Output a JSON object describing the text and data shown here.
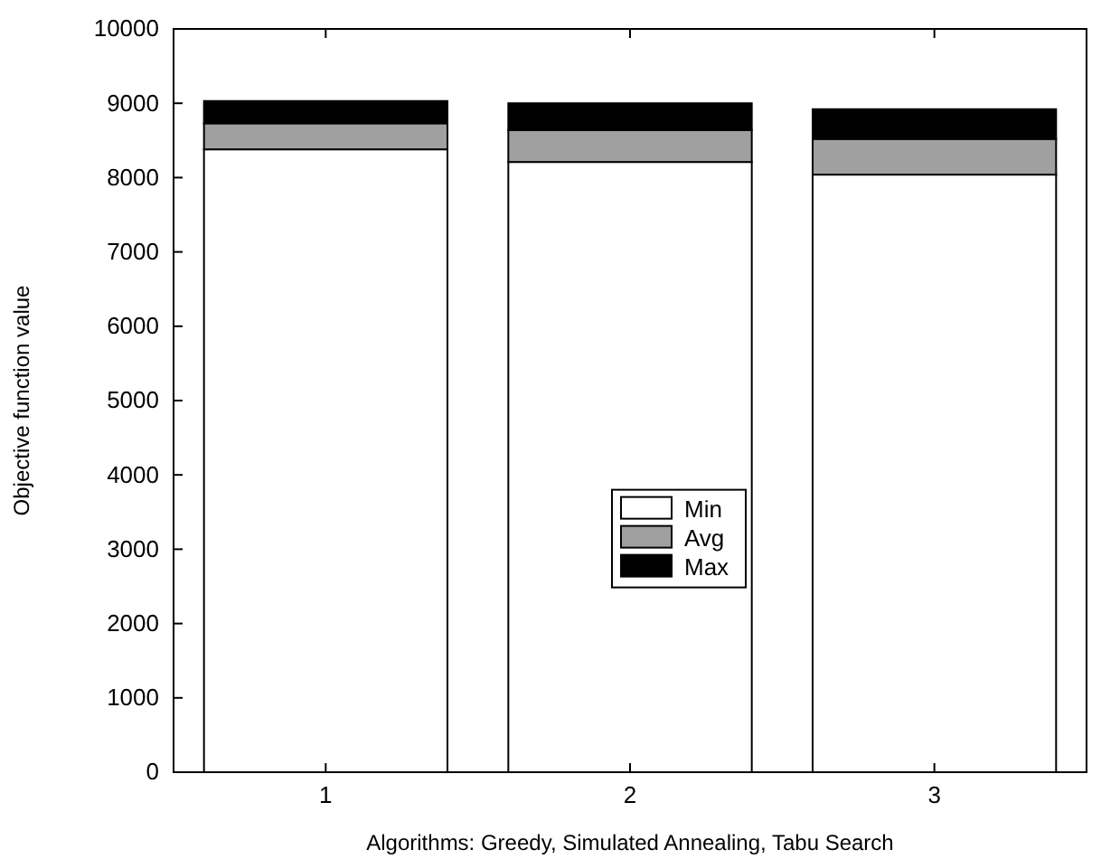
{
  "chart_data": {
    "type": "bar",
    "stacked": true,
    "xlabel": "Algorithms: Greedy, Simulated Annealing, Tabu Search",
    "ylabel": "Objective function value",
    "categories": [
      "1",
      "2",
      "3"
    ],
    "series": [
      {
        "name": "Min",
        "color": "#ffffff",
        "values": [
          8380,
          8210,
          8040
        ]
      },
      {
        "name": "Avg",
        "color": "#a0a0a0",
        "values": [
          350,
          430,
          480
        ]
      },
      {
        "name": "Max",
        "color": "#000000",
        "values": [
          300,
          360,
          400
        ]
      }
    ],
    "ylim": [
      0,
      10000
    ],
    "yticks": [
      0,
      1000,
      2000,
      3000,
      4000,
      5000,
      6000,
      7000,
      8000,
      9000,
      10000
    ],
    "grid": false,
    "legend": "center"
  }
}
